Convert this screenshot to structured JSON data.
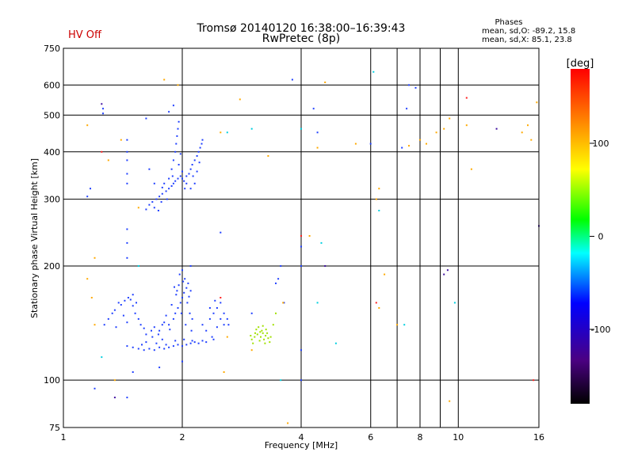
{
  "header": {
    "title_line1": "Tromsø 20140120 16:38:00–16:39:43",
    "title_line2": "RwPretec (8p)",
    "hv_status": "HV Off",
    "hv_color": "#cc0000"
  },
  "stats": {
    "title": "Phases",
    "line1": "mean, sd,O: -89.2, 15.8",
    "line2": "mean, sd,X:  85.1, 23.8"
  },
  "chart_data": {
    "type": "scatter",
    "xlabel": "Frequency [MHz]",
    "ylabel": "Stationary phase Virtual Height [km]",
    "xscale": "log",
    "yscale": "log",
    "xlim": [
      1,
      16
    ],
    "ylim": [
      75,
      750
    ],
    "x_ticks": [
      1,
      2,
      4,
      6,
      8,
      10,
      16
    ],
    "x_grid": [
      2,
      4,
      6,
      7,
      8,
      9,
      10
    ],
    "y_ticks": [
      75,
      100,
      200,
      300,
      400,
      500,
      600,
      750
    ],
    "grid": true,
    "colorbar": {
      "label": "[deg]",
      "range": [
        -180,
        180
      ],
      "ticks": [
        100,
        0,
        -100
      ]
    },
    "series": [
      {
        "role": "O-mode trace (blue)",
        "color": "#2040ff",
        "points": [
          [
            1.27,
            140
          ],
          [
            1.3,
            145
          ],
          [
            1.33,
            150
          ],
          [
            1.35,
            153
          ],
          [
            1.38,
            160
          ],
          [
            1.4,
            158
          ],
          [
            1.43,
            162
          ],
          [
            1.46,
            165
          ],
          [
            1.48,
            163
          ],
          [
            1.5,
            157
          ],
          [
            1.52,
            150
          ],
          [
            1.55,
            145
          ],
          [
            1.57,
            140
          ],
          [
            1.6,
            137
          ],
          [
            1.62,
            132
          ],
          [
            1.42,
            148
          ],
          [
            1.45,
            142
          ],
          [
            1.5,
            168
          ],
          [
            1.53,
            160
          ],
          [
            1.36,
            138
          ],
          [
            1.45,
            123
          ],
          [
            1.5,
            122
          ],
          [
            1.55,
            121
          ],
          [
            1.6,
            120
          ],
          [
            1.65,
            121
          ],
          [
            1.7,
            120
          ],
          [
            1.75,
            122
          ],
          [
            1.8,
            121
          ],
          [
            1.85,
            122
          ],
          [
            1.9,
            123
          ],
          [
            1.95,
            124
          ],
          [
            2.0,
            123
          ],
          [
            2.05,
            124
          ],
          [
            2.1,
            125
          ],
          [
            2.15,
            126
          ],
          [
            2.2,
            125
          ],
          [
            2.3,
            126
          ],
          [
            2.4,
            128
          ],
          [
            1.62,
            126
          ],
          [
            1.72,
            125
          ],
          [
            1.82,
            124
          ],
          [
            1.92,
            127
          ],
          [
            2.02,
            128
          ],
          [
            2.12,
            127
          ],
          [
            2.25,
            127
          ],
          [
            1.68,
            130
          ],
          [
            1.78,
            128
          ],
          [
            1.58,
            124
          ],
          [
            1.7,
            138
          ],
          [
            1.75,
            135
          ],
          [
            1.8,
            142
          ],
          [
            1.85,
            140
          ],
          [
            1.9,
            145
          ],
          [
            1.92,
            150
          ],
          [
            1.95,
            155
          ],
          [
            1.98,
            160
          ],
          [
            2.0,
            165
          ],
          [
            2.02,
            170
          ],
          [
            2.05,
            175
          ],
          [
            2.07,
            180
          ],
          [
            2.1,
            172
          ],
          [
            2.03,
            185
          ],
          [
            1.97,
            190
          ],
          [
            2.0,
            195
          ],
          [
            1.88,
            158
          ],
          [
            1.93,
            168
          ],
          [
            1.96,
            178
          ],
          [
            2.06,
            160
          ],
          [
            2.09,
            150
          ],
          [
            2.12,
            145
          ],
          [
            1.82,
            148
          ],
          [
            1.78,
            140
          ],
          [
            2.04,
            140
          ],
          [
            1.99,
            150
          ],
          [
            1.94,
            172
          ],
          [
            2.01,
            182
          ],
          [
            2.08,
            166
          ],
          [
            1.91,
            176
          ],
          [
            2.11,
            135
          ],
          [
            1.86,
            136
          ],
          [
            1.74,
            132
          ],
          [
            1.67,
            135
          ],
          [
            2.25,
            140
          ],
          [
            2.3,
            135
          ],
          [
            2.35,
            145
          ],
          [
            2.4,
            150
          ],
          [
            2.45,
            155
          ],
          [
            2.5,
            160
          ],
          [
            2.55,
            150
          ],
          [
            2.6,
            145
          ],
          [
            2.45,
            138
          ],
          [
            2.38,
            130
          ],
          [
            2.55,
            140
          ],
          [
            2.5,
            145
          ],
          [
            2.62,
            140
          ],
          [
            2.35,
            155
          ],
          [
            2.42,
            162
          ],
          [
            1.65,
            290
          ],
          [
            1.68,
            295
          ],
          [
            1.72,
            300
          ],
          [
            1.75,
            305
          ],
          [
            1.78,
            310
          ],
          [
            1.82,
            315
          ],
          [
            1.85,
            320
          ],
          [
            1.88,
            325
          ],
          [
            1.9,
            330
          ],
          [
            1.92,
            335
          ],
          [
            1.95,
            340
          ],
          [
            1.98,
            345
          ],
          [
            2.0,
            340
          ],
          [
            2.02,
            335
          ],
          [
            2.05,
            345
          ],
          [
            2.08,
            350
          ],
          [
            2.1,
            360
          ],
          [
            2.12,
            370
          ],
          [
            2.15,
            380
          ],
          [
            2.18,
            390
          ],
          [
            2.2,
            400
          ],
          [
            2.22,
            410
          ],
          [
            2.24,
            420
          ],
          [
            2.25,
            430
          ],
          [
            1.88,
            360
          ],
          [
            1.9,
            380
          ],
          [
            1.92,
            400
          ],
          [
            1.93,
            420
          ],
          [
            1.94,
            440
          ],
          [
            1.95,
            460
          ],
          [
            1.96,
            480
          ],
          [
            1.8,
            330
          ],
          [
            1.85,
            340
          ],
          [
            2.05,
            330
          ],
          [
            2.1,
            320
          ],
          [
            2.15,
            330
          ],
          [
            1.96,
            370
          ],
          [
            2.0,
            355
          ],
          [
            1.7,
            285
          ],
          [
            1.62,
            282
          ],
          [
            1.78,
            322
          ],
          [
            1.83,
            300
          ],
          [
            2.03,
            320
          ],
          [
            2.13,
            345
          ],
          [
            2.18,
            355
          ],
          [
            1.98,
            395
          ],
          [
            1.89,
            345
          ],
          [
            1.77,
            295
          ],
          [
            1.74,
            280
          ],
          [
            2.21,
            375
          ],
          [
            1.45,
            430
          ],
          [
            1.45,
            400
          ],
          [
            1.45,
            380
          ],
          [
            1.45,
            350
          ],
          [
            1.45,
            330
          ],
          [
            1.45,
            250
          ],
          [
            1.45,
            230
          ],
          [
            1.45,
            210
          ],
          [
            1.65,
            360
          ],
          [
            1.7,
            330
          ],
          [
            1.17,
            320
          ],
          [
            1.15,
            305
          ],
          [
            1.26,
            520
          ],
          [
            1.26,
            505
          ],
          [
            1.85,
            510
          ],
          [
            1.62,
            490
          ],
          [
            1.9,
            530
          ],
          [
            2.5,
            245
          ],
          [
            3.55,
            200
          ],
          [
            3.5,
            185
          ],
          [
            3.45,
            180
          ],
          [
            3.62,
            160
          ],
          [
            3.0,
            150
          ],
          [
            4.0,
            240
          ],
          [
            4.0,
            225
          ],
          [
            4.0,
            200
          ],
          [
            4.0,
            120
          ],
          [
            4.0,
            100
          ],
          [
            4.4,
            450
          ],
          [
            4.3,
            520
          ],
          [
            3.8,
            620
          ],
          [
            6.0,
            420
          ],
          [
            7.2,
            410
          ],
          [
            7.4,
            520
          ],
          [
            7.5,
            600
          ],
          [
            7.8,
            590
          ],
          [
            1.2,
            95
          ],
          [
            1.45,
            90
          ],
          [
            1.5,
            105
          ],
          [
            1.75,
            108
          ],
          [
            2.0,
            112
          ],
          [
            2.1,
            200
          ]
        ]
      },
      {
        "role": "X-mode cluster (green-yellow)",
        "color": "#a0e000",
        "points": [
          [
            3.0,
            128
          ],
          [
            3.05,
            130
          ],
          [
            3.1,
            132
          ],
          [
            3.15,
            134
          ],
          [
            3.2,
            133
          ],
          [
            3.25,
            131
          ],
          [
            3.3,
            129
          ],
          [
            3.35,
            130
          ],
          [
            3.08,
            136
          ],
          [
            3.12,
            138
          ],
          [
            3.18,
            135
          ],
          [
            3.22,
            128
          ],
          [
            3.28,
            133
          ],
          [
            3.02,
            125
          ],
          [
            3.14,
            127
          ],
          [
            3.26,
            136
          ],
          [
            3.33,
            126
          ],
          [
            3.06,
            133
          ],
          [
            3.2,
            139
          ],
          [
            3.16,
            130
          ],
          [
            3.24,
            125
          ],
          [
            2.98,
            131
          ],
          [
            3.4,
            140
          ],
          [
            3.45,
            150
          ]
        ]
      },
      {
        "role": "scattered echoes (orange-yellow)",
        "color": "#ffaa00",
        "points": [
          [
            1.15,
            470
          ],
          [
            1.2,
            210
          ],
          [
            1.15,
            185
          ],
          [
            1.18,
            165
          ],
          [
            1.3,
            380
          ],
          [
            1.35,
            100
          ],
          [
            1.55,
            285
          ],
          [
            1.8,
            620
          ],
          [
            1.95,
            600
          ],
          [
            2.5,
            450
          ],
          [
            2.8,
            550
          ],
          [
            2.6,
            130
          ],
          [
            2.55,
            105
          ],
          [
            3.0,
            120
          ],
          [
            3.3,
            390
          ],
          [
            3.6,
            160
          ],
          [
            3.7,
            77
          ],
          [
            4.2,
            240
          ],
          [
            4.4,
            410
          ],
          [
            4.6,
            610
          ],
          [
            5.5,
            420
          ],
          [
            6.2,
            300
          ],
          [
            6.3,
            320
          ],
          [
            6.5,
            190
          ],
          [
            6.3,
            155
          ],
          [
            7.0,
            140
          ],
          [
            7.5,
            415
          ],
          [
            8.0,
            430
          ],
          [
            8.3,
            420
          ],
          [
            8.8,
            450
          ],
          [
            9.2,
            460
          ],
          [
            9.5,
            490
          ],
          [
            9.5,
            88
          ],
          [
            10.5,
            470
          ],
          [
            10.8,
            360
          ],
          [
            14.5,
            450
          ],
          [
            15.0,
            470
          ],
          [
            15.3,
            430
          ],
          [
            15.8,
            540
          ],
          [
            1.2,
            140
          ],
          [
            1.4,
            430
          ]
        ]
      },
      {
        "role": "scattered echoes (red)",
        "color": "#ff2020",
        "points": [
          [
            1.25,
            400
          ],
          [
            2.5,
            165
          ],
          [
            4.0,
            240
          ],
          [
            6.2,
            160
          ],
          [
            10.5,
            555
          ],
          [
            15.5,
            100
          ]
        ]
      },
      {
        "role": "scattered echoes (cyan)",
        "color": "#00d0e0",
        "points": [
          [
            1.25,
            115
          ],
          [
            1.55,
            200
          ],
          [
            2.6,
            450
          ],
          [
            3.0,
            460
          ],
          [
            3.55,
            100
          ],
          [
            4.0,
            460
          ],
          [
            4.4,
            160
          ],
          [
            4.5,
            230
          ],
          [
            4.9,
            125
          ],
          [
            6.1,
            650
          ],
          [
            6.3,
            280
          ],
          [
            7.3,
            140
          ],
          [
            9.8,
            160
          ]
        ]
      },
      {
        "role": "scattered echoes (dark violet)",
        "color": "#4010a0",
        "points": [
          [
            1.25,
            535
          ],
          [
            1.35,
            90
          ],
          [
            4.6,
            200
          ],
          [
            9.2,
            190
          ],
          [
            9.4,
            195
          ],
          [
            12.5,
            460
          ],
          [
            16.0,
            255
          ]
        ]
      }
    ]
  }
}
